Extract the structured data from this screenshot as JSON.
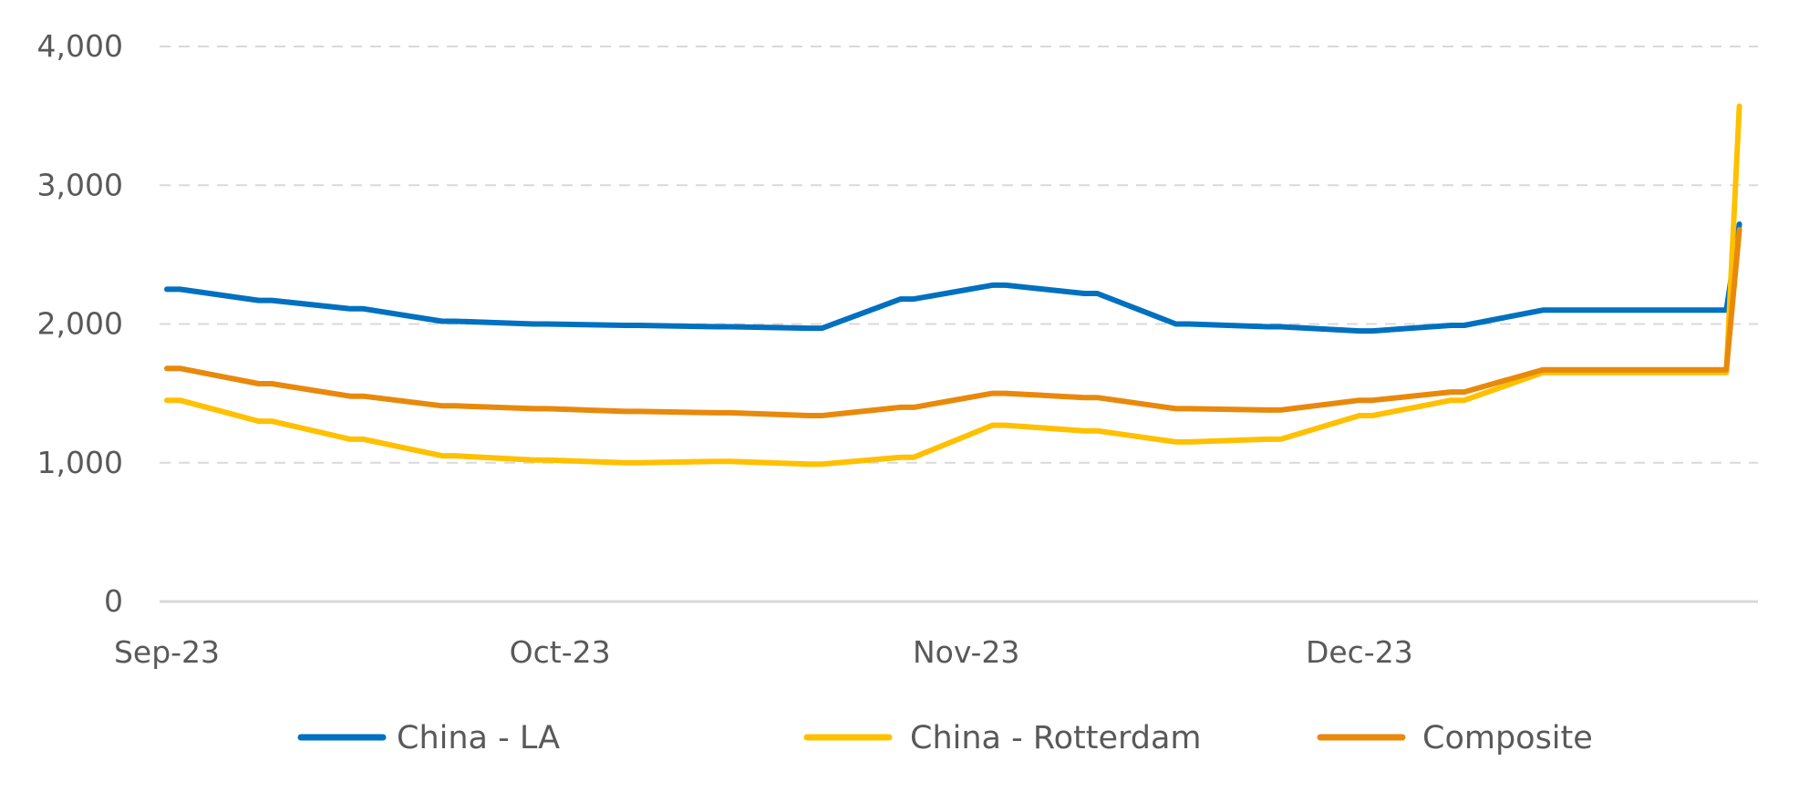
{
  "chart_data": {
    "type": "line",
    "title": "",
    "xlabel": "",
    "ylabel": "",
    "ylim": [
      0,
      4000
    ],
    "yticks": [
      0,
      1000,
      2000,
      3000,
      4000
    ],
    "ytick_labels": [
      "0",
      "1,000",
      "2,000",
      "3,000",
      "4,000"
    ],
    "xlim": [
      "2023-09-01",
      "2023-12-31"
    ],
    "xticks": [
      "2023-09-01",
      "2023-10-01",
      "2023-11-01",
      "2023-12-01"
    ],
    "xtick_labels": [
      "Sep-23",
      "Oct-23",
      "Nov-23",
      "Dec-23"
    ],
    "grid": "horizontal dashed",
    "legend": "bottom",
    "x": [
      "2023-09-01",
      "2023-09-02",
      "2023-09-08",
      "2023-09-09",
      "2023-09-15",
      "2023-09-16",
      "2023-09-22",
      "2023-09-23",
      "2023-09-29",
      "2023-09-30",
      "2023-10-06",
      "2023-10-07",
      "2023-10-13",
      "2023-10-14",
      "2023-10-20",
      "2023-10-21",
      "2023-10-27",
      "2023-10-28",
      "2023-11-03",
      "2023-11-04",
      "2023-11-10",
      "2023-11-11",
      "2023-11-17",
      "2023-11-18",
      "2023-11-24",
      "2023-11-25",
      "2023-12-01",
      "2023-12-02",
      "2023-12-08",
      "2023-12-09",
      "2023-12-15",
      "2023-12-16",
      "2023-12-22",
      "2023-12-23",
      "2023-12-29",
      "2023-12-30"
    ],
    "series": [
      {
        "name": "China - LA",
        "color": "#0070c0",
        "values": [
          2250,
          2250,
          2170,
          2170,
          2110,
          2110,
          2020,
          2020,
          2000,
          2000,
          1990,
          1990,
          1980,
          1980,
          1970,
          1970,
          2180,
          2180,
          2280,
          2280,
          2220,
          2220,
          2000,
          2000,
          1980,
          1980,
          1950,
          1950,
          1990,
          1990,
          2100,
          2100,
          2100,
          2100,
          2100,
          2720
        ]
      },
      {
        "name": "China - Rotterdam",
        "color": "#ffc000",
        "values": [
          1450,
          1450,
          1300,
          1300,
          1170,
          1170,
          1050,
          1050,
          1020,
          1020,
          1000,
          1000,
          1010,
          1010,
          990,
          990,
          1040,
          1040,
          1270,
          1270,
          1230,
          1230,
          1150,
          1150,
          1170,
          1170,
          1340,
          1340,
          1450,
          1450,
          1650,
          1650,
          1650,
          1650,
          1650,
          3570
        ]
      },
      {
        "name": "Composite",
        "color": "#e8890c",
        "values": [
          1680,
          1680,
          1570,
          1570,
          1480,
          1480,
          1410,
          1410,
          1390,
          1390,
          1370,
          1370,
          1360,
          1360,
          1340,
          1340,
          1400,
          1400,
          1500,
          1500,
          1470,
          1470,
          1390,
          1390,
          1380,
          1380,
          1450,
          1450,
          1510,
          1510,
          1670,
          1670,
          1670,
          1670,
          1670,
          2680
        ]
      }
    ]
  }
}
